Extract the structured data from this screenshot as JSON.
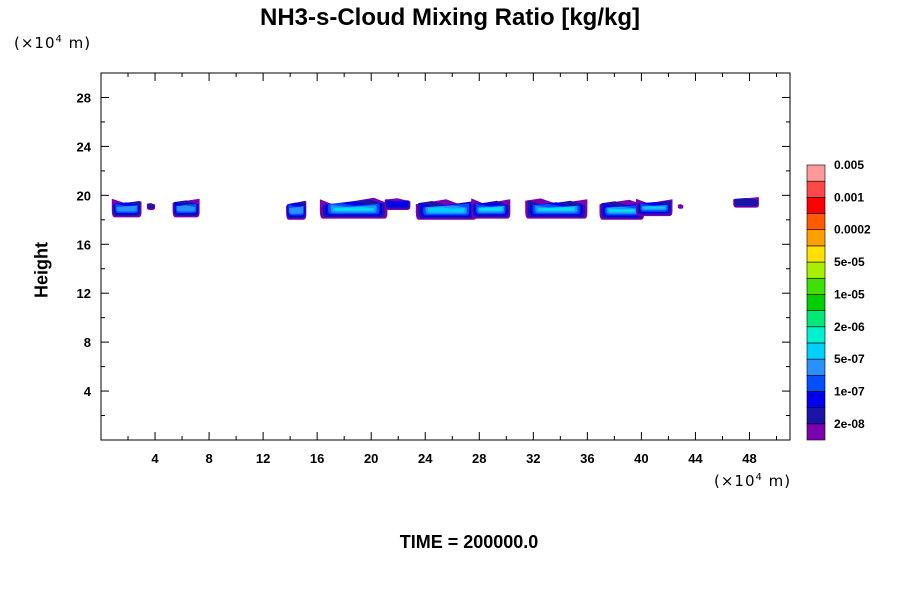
{
  "chart_data": {
    "type": "heatmap",
    "title": "NH3-s-Cloud Mixing Ratio [kg/kg]",
    "xlabel": "",
    "ylabel": "Height",
    "x_unit": "×10",
    "y_unit": "×10",
    "unit_exp": "4",
    "unit_suffix": "m",
    "x_range": [
      0,
      51
    ],
    "y_range": [
      0,
      30
    ],
    "x_ticks": [
      4,
      8,
      12,
      16,
      20,
      24,
      28,
      32,
      36,
      40,
      44,
      48
    ],
    "y_ticks": [
      4,
      8,
      12,
      16,
      20,
      24,
      28
    ],
    "footer": "TIME = 200000.0",
    "colorbar": {
      "colors": [
        "#7a00b0",
        "#1a14a8",
        "#0000ee",
        "#0050ff",
        "#2890ff",
        "#00d0ff",
        "#00f0d0",
        "#00e878",
        "#00d000",
        "#40e000",
        "#a8f000",
        "#ffe000",
        "#ffa000",
        "#ff5a00",
        "#ff0000",
        "#ff4848",
        "#ff9a9a"
      ],
      "labels": [
        "2e-08",
        "1e-07",
        "5e-07",
        "2e-06",
        "1e-05",
        "5e-05",
        "0.0002",
        "0.001",
        "0.005"
      ]
    },
    "cloud_blobs": [
      {
        "x0": 0.8,
        "x1": 3.0,
        "y_bot": 18.2,
        "y_top": 19.8,
        "peak": 2.6
      },
      {
        "x0": 3.4,
        "x1": 4.0,
        "y_bot": 18.8,
        "y_top": 19.4,
        "peak": 1.0
      },
      {
        "x0": 5.3,
        "x1": 7.3,
        "y_bot": 18.2,
        "y_top": 19.8,
        "peak": 2.6
      },
      {
        "x0": 13.7,
        "x1": 15.2,
        "y_bot": 18.0,
        "y_top": 19.8,
        "peak": 2.6
      },
      {
        "x0": 16.2,
        "x1": 21.2,
        "y_bot": 18.1,
        "y_top": 19.9,
        "peak": 3.4
      },
      {
        "x0": 21.0,
        "x1": 22.9,
        "y_bot": 18.8,
        "y_top": 19.9,
        "peak": 1.6
      },
      {
        "x0": 23.3,
        "x1": 27.8,
        "y_bot": 18.0,
        "y_top": 19.9,
        "peak": 3.2
      },
      {
        "x0": 27.4,
        "x1": 30.3,
        "y_bot": 18.1,
        "y_top": 19.9,
        "peak": 3.4
      },
      {
        "x0": 31.4,
        "x1": 36.0,
        "y_bot": 18.1,
        "y_top": 19.9,
        "peak": 3.4
      },
      {
        "x0": 36.9,
        "x1": 40.2,
        "y_bot": 18.0,
        "y_top": 19.8,
        "peak": 3.4
      },
      {
        "x0": 39.6,
        "x1": 42.3,
        "y_bot": 18.3,
        "y_top": 19.8,
        "peak": 3.0
      },
      {
        "x0": 42.7,
        "x1": 43.1,
        "y_bot": 18.9,
        "y_top": 19.3,
        "peak": 0.6
      },
      {
        "x0": 46.8,
        "x1": 48.7,
        "y_bot": 19.0,
        "y_top": 19.9,
        "peak": 1.2
      }
    ]
  }
}
